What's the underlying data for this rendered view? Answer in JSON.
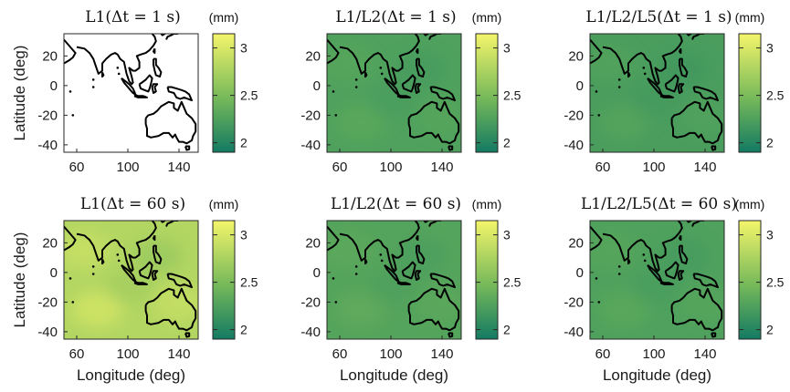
{
  "chart_data": [
    {
      "type": "heatmap",
      "title": "L1(Δt = 1 s)",
      "unit": "(mm)",
      "level": 3.1,
      "xlabel": "",
      "ylabel": "Latitude (deg)",
      "xticks": [
        60,
        100,
        140
      ],
      "yticks": [
        20,
        0,
        -20,
        -40
      ],
      "xlim": [
        50,
        155
      ],
      "ylim": [
        -45,
        35
      ],
      "clim": [
        1.9,
        3.15
      ],
      "cbticks": [
        2,
        2.5,
        3
      ]
    },
    {
      "type": "heatmap",
      "title": "L1/L2(Δt = 1 s)",
      "unit": "(mm)",
      "level": 2.25,
      "xlabel": "",
      "ylabel": "",
      "xticks": [
        60,
        100,
        140
      ],
      "yticks": [
        20,
        0,
        -20,
        -40
      ],
      "xlim": [
        50,
        155
      ],
      "ylim": [
        -45,
        35
      ],
      "clim": [
        1.9,
        3.15
      ],
      "cbticks": [
        2,
        2.5,
        3
      ]
    },
    {
      "type": "heatmap",
      "title": "L1/L2/L5(Δt = 1 s)",
      "unit": "(mm)",
      "level": 2.22,
      "xlabel": "",
      "ylabel": "",
      "xticks": [
        60,
        100,
        140
      ],
      "yticks": [
        20,
        0,
        -20,
        -40
      ],
      "xlim": [
        50,
        155
      ],
      "ylim": [
        -45,
        35
      ],
      "clim": [
        1.9,
        3.15
      ],
      "cbticks": [
        2,
        2.5,
        3
      ]
    },
    {
      "type": "heatmap",
      "title": "L1(Δt = 60 s)",
      "unit": "(mm)",
      "level": 2.8,
      "xlabel": "Longitude (deg)",
      "ylabel": "Latitude (deg)",
      "xticks": [
        60,
        100,
        140
      ],
      "yticks": [
        20,
        0,
        -20,
        -40
      ],
      "xlim": [
        50,
        155
      ],
      "ylim": [
        -45,
        35
      ],
      "clim": [
        1.9,
        3.15
      ],
      "cbticks": [
        2,
        2.5,
        3
      ]
    },
    {
      "type": "heatmap",
      "title": "L1/L2(Δt = 60 s)",
      "unit": "(mm)",
      "level": 2.28,
      "xlabel": "Longitude (deg)",
      "ylabel": "",
      "xticks": [
        60,
        100,
        140
      ],
      "yticks": [
        20,
        0,
        -20,
        -40
      ],
      "xlim": [
        50,
        155
      ],
      "ylim": [
        -45,
        35
      ],
      "clim": [
        1.9,
        3.15
      ],
      "cbticks": [
        2,
        2.5,
        3
      ]
    },
    {
      "type": "heatmap",
      "title": "L1/L2/L5(Δt = 60 s)",
      "unit": "(mm)",
      "level": 2.25,
      "xlabel": "Longitude (deg)",
      "ylabel": "",
      "xticks": [
        60,
        100,
        140
      ],
      "yticks": [
        20,
        0,
        -20,
        -40
      ],
      "xlim": [
        50,
        155
      ],
      "ylim": [
        -45,
        35
      ],
      "clim": [
        1.9,
        3.15
      ],
      "cbticks": [
        2,
        2.5,
        3
      ]
    }
  ],
  "colors": {
    "low": "#137a62",
    "mid": "#74b85a",
    "high": "#f4f56a",
    "coast": "#000000"
  }
}
